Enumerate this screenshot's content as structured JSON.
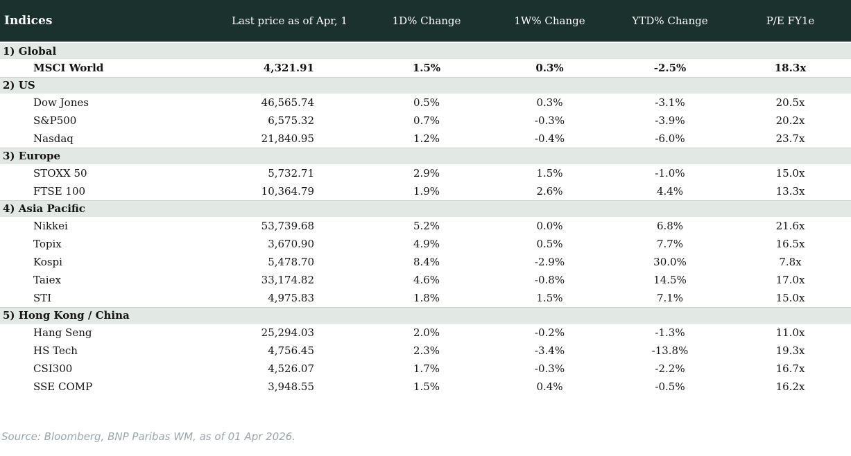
{
  "colors": {
    "positive": "#0a9531",
    "negative": "#b6212a",
    "header_bg": "#1b312e",
    "section_bg": "#e2e8e3",
    "section_border": "#c9d1ca",
    "footer_text": "#9aa6ae"
  },
  "chart_data": {
    "type": "table",
    "title": "Indices",
    "columns": [
      "Indices",
      "Last price as of Apr, 1",
      "1D% Change",
      "1W% Change",
      "YTD% Change",
      "P/E FY1e"
    ],
    "sections": [
      {
        "label": "1) Global",
        "rows": [
          {
            "name": "MSCI World",
            "price": "4,321.91",
            "d1": "1.5%",
            "d1_dir": "up",
            "w1": "0.3%",
            "w1_dir": "up",
            "ytd": "-2.5%",
            "ytd_dir": "down",
            "pe": "18.3x",
            "bold": true
          }
        ]
      },
      {
        "label": "2) US",
        "rows": [
          {
            "name": "Dow Jones",
            "price": "46,565.74",
            "d1": "0.5%",
            "d1_dir": "up",
            "w1": "0.3%",
            "w1_dir": "up",
            "ytd": "-3.1%",
            "ytd_dir": "down",
            "pe": "20.5x"
          },
          {
            "name": "S&P500",
            "price": "6,575.32",
            "d1": "0.7%",
            "d1_dir": "up",
            "w1": "-0.3%",
            "w1_dir": "down",
            "ytd": "-3.9%",
            "ytd_dir": "down",
            "pe": "20.2x"
          },
          {
            "name": "Nasdaq",
            "price": "21,840.95",
            "d1": "1.2%",
            "d1_dir": "up",
            "w1": "-0.4%",
            "w1_dir": "down",
            "ytd": "-6.0%",
            "ytd_dir": "down",
            "pe": "23.7x"
          }
        ]
      },
      {
        "label": "3) Europe",
        "rows": [
          {
            "name": "STOXX 50",
            "price": "5,732.71",
            "d1": "2.9%",
            "d1_dir": "up",
            "w1": "1.5%",
            "w1_dir": "up",
            "ytd": "-1.0%",
            "ytd_dir": "down",
            "pe": "15.0x"
          },
          {
            "name": "FTSE 100",
            "price": "10,364.79",
            "d1": "1.9%",
            "d1_dir": "up",
            "w1": "2.6%",
            "w1_dir": "up",
            "ytd": "4.4%",
            "ytd_dir": "up",
            "pe": "13.3x"
          }
        ]
      },
      {
        "label": "4) Asia Pacific",
        "rows": [
          {
            "name": "Nikkei",
            "price": "53,739.68",
            "d1": "5.2%",
            "d1_dir": "up",
            "w1": "0.0%",
            "w1_dir": "down",
            "ytd": "6.8%",
            "ytd_dir": "up",
            "pe": "21.6x"
          },
          {
            "name": "Topix",
            "price": "3,670.90",
            "d1": "4.9%",
            "d1_dir": "up",
            "w1": "0.5%",
            "w1_dir": "up",
            "ytd": "7.7%",
            "ytd_dir": "up",
            "pe": "16.5x"
          },
          {
            "name": "Kospi",
            "price": "5,478.70",
            "d1": "8.4%",
            "d1_dir": "up",
            "w1": "-2.9%",
            "w1_dir": "down",
            "ytd": "30.0%",
            "ytd_dir": "up",
            "pe": "7.8x"
          },
          {
            "name": "Taiex",
            "price": "33,174.82",
            "d1": "4.6%",
            "d1_dir": "up",
            "w1": "-0.8%",
            "w1_dir": "down",
            "ytd": "14.5%",
            "ytd_dir": "up",
            "pe": "17.0x"
          },
          {
            "name": "STI",
            "price": "4,975.83",
            "d1": "1.8%",
            "d1_dir": "up",
            "w1": "1.5%",
            "w1_dir": "up",
            "ytd": "7.1%",
            "ytd_dir": "up",
            "pe": "15.0x"
          }
        ]
      },
      {
        "label": "5) Hong Kong / China",
        "rows": [
          {
            "name": "Hang Seng",
            "price": "25,294.03",
            "d1": "2.0%",
            "d1_dir": "up",
            "w1": "-0.2%",
            "w1_dir": "down",
            "ytd": "-1.3%",
            "ytd_dir": "down",
            "pe": "11.0x"
          },
          {
            "name": "HS Tech",
            "price": "4,756.45",
            "d1": "2.3%",
            "d1_dir": "up",
            "w1": "-3.4%",
            "w1_dir": "down",
            "ytd": "-13.8%",
            "ytd_dir": "down",
            "pe": "19.3x"
          },
          {
            "name": "CSI300",
            "price": "4,526.07",
            "d1": "1.7%",
            "d1_dir": "up",
            "w1": "-0.3%",
            "w1_dir": "down",
            "ytd": "-2.2%",
            "ytd_dir": "down",
            "pe": "16.7x"
          },
          {
            "name": "SSE COMP",
            "price": "3,948.55",
            "d1": "1.5%",
            "d1_dir": "up",
            "w1": "0.4%",
            "w1_dir": "up",
            "ytd": "-0.5%",
            "ytd_dir": "down",
            "pe": "16.2x"
          }
        ]
      }
    ]
  },
  "footer": {
    "source": "Source: Bloomberg, BNP Paribas WM, as of 01 Apr 2026."
  }
}
